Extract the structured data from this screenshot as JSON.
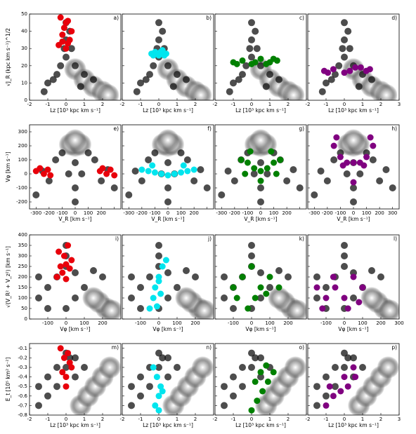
{
  "chart_data": [
    {
      "type": "scatter",
      "xlabel": "Lz [10³ kpc km s⁻¹]",
      "ylabel": "√J_R (kpc km s⁻¹)^1/2",
      "xlim": [
        -2,
        3
      ],
      "ylim": [
        0,
        50
      ],
      "xticks": [
        -2,
        -1,
        0,
        1,
        2,
        3
      ],
      "yticks": [
        0,
        10,
        20,
        30,
        40,
        50
      ],
      "background": {
        "x": [
          -1,
          -0.5,
          0,
          0,
          0.2,
          -0.3,
          0.5,
          1,
          1.5,
          -1.2,
          0.8,
          0,
          -0.1,
          0.3,
          -0.7
        ],
        "y": [
          10,
          15,
          25,
          35,
          40,
          20,
          20,
          15,
          12,
          5,
          8,
          45,
          30,
          30,
          12
        ]
      },
      "core": {
        "x": [
          0.5,
          1,
          1.5,
          2,
          2.3
        ],
        "y": [
          18,
          12,
          8,
          5,
          3
        ]
      },
      "panels": [
        {
          "label": "a)",
          "color": "#e8000b",
          "x": [
            -0.4,
            -0.2,
            0,
            0.2,
            -0.3,
            -0.1,
            0.1,
            0.3,
            0,
            -0.2,
            0.1
          ],
          "y": [
            32,
            38,
            45,
            35,
            48,
            42,
            33,
            40,
            30,
            34,
            46
          ]
        },
        {
          "label": "b)",
          "color": "#00e5ee",
          "x": [
            -0.4,
            -0.2,
            0,
            0.2,
            0.4,
            -0.3,
            0.1,
            0.3
          ],
          "y": [
            27,
            28,
            26,
            29,
            27,
            26,
            28,
            26
          ]
        },
        {
          "label": "c)",
          "color": "#008000",
          "x": [
            -1,
            -0.5,
            0,
            0.5,
            1,
            1.4,
            -0.8,
            0.2,
            0.8,
            1.2
          ],
          "y": [
            22,
            23,
            21,
            24,
            22,
            23,
            21,
            22,
            21,
            24
          ]
        },
        {
          "label": "d)",
          "color": "#800080",
          "x": [
            -1.1,
            -0.6,
            0,
            0.6,
            1.2,
            1.4,
            -0.9,
            0.3,
            0.9
          ],
          "y": [
            17,
            18,
            16,
            19,
            17,
            18,
            16,
            17,
            19
          ]
        }
      ]
    },
    {
      "type": "scatter",
      "xlabel": "V_R [km s⁻¹]",
      "ylabel": "Vφ [km s⁻¹]",
      "xlim": [
        -350,
        350
      ],
      "ylim": [
        -250,
        350
      ],
      "xticks": [
        -300,
        -200,
        -100,
        0,
        100,
        200,
        300
      ],
      "yticks": [
        -200,
        -100,
        0,
        100,
        200,
        300
      ],
      "background": {
        "x": [
          -250,
          -200,
          -150,
          -100,
          0,
          100,
          150,
          200,
          250,
          -300,
          300,
          0,
          -50,
          50,
          0
        ],
        "y": [
          20,
          -50,
          100,
          150,
          -100,
          150,
          100,
          -50,
          30,
          -150,
          -100,
          -200,
          0,
          0,
          80
        ]
      },
      "core": {
        "x": [
          0,
          -40,
          40,
          0
        ],
        "y": [
          200,
          210,
          210,
          240
        ]
      },
      "panels": [
        {
          "label": "e)",
          "color": "#e8000b",
          "x": [
            -300,
            -270,
            -240,
            -210,
            -190,
            190,
            210,
            240,
            270,
            300
          ],
          "y": [
            20,
            40,
            0,
            30,
            -10,
            20,
            40,
            0,
            30,
            -10
          ]
        },
        {
          "label": "f)",
          "color": "#00e5ee",
          "x": [
            -200,
            -150,
            -100,
            -50,
            0,
            50,
            100,
            150,
            200,
            -120,
            120
          ],
          "y": [
            30,
            20,
            10,
            0,
            -10,
            0,
            10,
            20,
            30,
            60,
            60
          ]
        },
        {
          "label": "g)",
          "color": "#008000",
          "x": [
            -150,
            -100,
            -50,
            0,
            50,
            100,
            150,
            -120,
            120,
            0,
            -80,
            80
          ],
          "y": [
            100,
            80,
            40,
            20,
            40,
            80,
            100,
            0,
            0,
            -50,
            160,
            160
          ]
        },
        {
          "label": "h)",
          "color": "#800080",
          "x": [
            -150,
            -100,
            -50,
            0,
            50,
            100,
            150,
            -130,
            130,
            0,
            -80,
            80
          ],
          "y": [
            200,
            120,
            80,
            80,
            80,
            120,
            200,
            260,
            260,
            -60,
            60,
            60
          ]
        }
      ]
    },
    {
      "type": "scatter",
      "xlabel": "Vφ [km s⁻¹]",
      "ylabel": "√(V_R² + V_z²) [km s⁻¹]",
      "xlim": [
        -200,
        300
      ],
      "ylim": [
        0,
        400
      ],
      "xticks": [
        -100,
        0,
        100,
        200,
        300
      ],
      "yticks": [
        0,
        50,
        100,
        150,
        200,
        250,
        300,
        350,
        400
      ],
      "background": {
        "x": [
          -150,
          -100,
          -50,
          0,
          0,
          50,
          100,
          -100,
          0,
          50,
          -150,
          0,
          150,
          200
        ],
        "y": [
          100,
          150,
          200,
          250,
          300,
          220,
          150,
          50,
          50,
          100,
          200,
          350,
          230,
          200
        ]
      },
      "core": {
        "x": [
          220,
          180,
          250,
          150
        ],
        "y": [
          50,
          80,
          40,
          100
        ]
      },
      "panels": [
        {
          "label": "i)",
          "color": "#e8000b",
          "x": [
            -50,
            -30,
            -10,
            10,
            30,
            -20,
            0,
            20,
            -40,
            0
          ],
          "y": [
            200,
            250,
            300,
            350,
            280,
            220,
            260,
            240,
            320,
            190
          ]
        },
        {
          "label": "j)",
          "color": "#00e5ee",
          "x": [
            -50,
            -30,
            -20,
            0,
            20,
            40,
            -10,
            10,
            0
          ],
          "y": [
            50,
            100,
            150,
            200,
            250,
            280,
            60,
            120,
            180
          ]
        },
        {
          "label": "k)",
          "color": "#008000",
          "x": [
            -100,
            -50,
            0,
            50,
            100,
            150,
            -80,
            20,
            80,
            -20
          ],
          "y": [
            150,
            200,
            250,
            150,
            200,
            150,
            100,
            100,
            120,
            50
          ]
        },
        {
          "label": "l)",
          "color": "#800080",
          "x": [
            -150,
            -100,
            -50,
            0,
            50,
            100,
            -120,
            -60,
            20,
            80
          ],
          "y": [
            150,
            100,
            150,
            100,
            200,
            150,
            50,
            200,
            50,
            80
          ]
        }
      ]
    },
    {
      "type": "scatter",
      "xlabel": "Lz [10³ kpc km s⁻¹]",
      "ylabel": "E_t [10⁵ km² s⁻²]",
      "xlim": [
        -2,
        3
      ],
      "ylim": [
        -0.8,
        -0.05
      ],
      "xticks": [
        -2,
        -1,
        0,
        1,
        2,
        3
      ],
      "yticks": [
        -0.8,
        -0.7,
        -0.6,
        -0.5,
        -0.4,
        -0.3,
        -0.2,
        -0.1
      ],
      "background": {
        "x": [
          -1.5,
          -1,
          -0.5,
          0,
          0.2,
          -0.5,
          0.5,
          1,
          -1,
          0,
          0.5,
          -1.5
        ],
        "y": [
          -0.7,
          -0.6,
          -0.5,
          -0.3,
          -0.2,
          -0.3,
          -0.4,
          -0.3,
          -0.4,
          -0.15,
          -0.2,
          -0.5
        ]
      },
      "core": {
        "x": [
          0.8,
          1.2,
          1.6,
          2,
          2.4
        ],
        "y": [
          -0.7,
          -0.6,
          -0.5,
          -0.4,
          -0.3
        ]
      },
      "panels": [
        {
          "label": "m)",
          "color": "#e8000b",
          "x": [
            -0.3,
            -0.1,
            0.1,
            0.3,
            0,
            -0.2,
            0.2,
            0
          ],
          "y": [
            -0.1,
            -0.2,
            -0.15,
            -0.3,
            -0.4,
            -0.35,
            -0.25,
            -0.5
          ]
        },
        {
          "label": "n)",
          "color": "#00e5ee",
          "x": [
            -0.3,
            -0.1,
            0.1,
            0,
            -0.2,
            0.2,
            0
          ],
          "y": [
            -0.3,
            -0.4,
            -0.5,
            -0.6,
            -0.7,
            -0.55,
            -0.75
          ]
        },
        {
          "label": "o)",
          "color": "#008000",
          "x": [
            0,
            0.3,
            0.6,
            0.9,
            1.2,
            0.2,
            0.5,
            0.8
          ],
          "y": [
            -0.75,
            -0.65,
            -0.55,
            -0.45,
            -0.35,
            -0.45,
            -0.35,
            -0.28
          ]
        },
        {
          "label": "p)",
          "color": "#800080",
          "x": [
            -1,
            -0.6,
            -0.2,
            0.2,
            0.6,
            -0.8,
            0,
            0.5
          ],
          "y": [
            -0.7,
            -0.6,
            -0.55,
            -0.5,
            -0.4,
            -0.5,
            -0.4,
            -0.3
          ]
        }
      ]
    }
  ]
}
